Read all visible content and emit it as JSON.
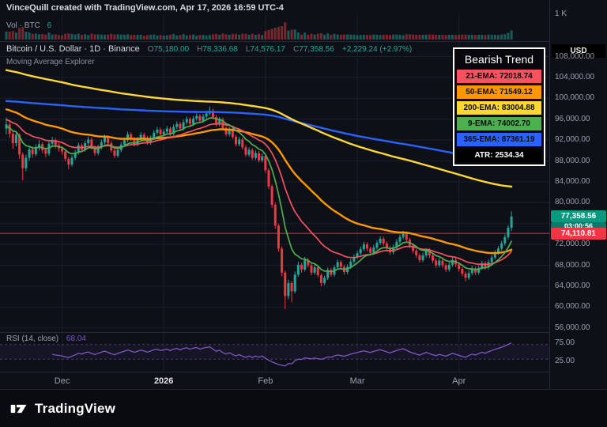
{
  "attribution": "VinceQuill created with TradingView.com, Apr 17, 2026 16:59 UTC-4",
  "volume_indicator": {
    "label": "Vol · BTC",
    "value": "6",
    "scale_label": "1 K"
  },
  "symbol_line": {
    "title": "Bitcoin / U.S. Dollar · 1D · Binance",
    "o_label": "O",
    "o": "75,180.00",
    "h_label": "H",
    "h": "78,336.68",
    "l_label": "L",
    "l": "74,576.17",
    "c_label": "C",
    "c": "77,358.56",
    "change": "+2,229.24 (+2.97%)"
  },
  "indicator_label": "Moving Average Explorer",
  "legend": {
    "title": "Bearish Trend",
    "rows": [
      {
        "label": "21-EMA: 72018.74",
        "bg": "#f7525f",
        "fg": "#0b0b0b"
      },
      {
        "label": "50-EMA: 71549.12",
        "bg": "#ff9800",
        "fg": "#0b0b0b"
      },
      {
        "label": "200-EMA: 83004.88",
        "bg": "#fdd835",
        "fg": "#0b0b0b"
      },
      {
        "label": "9-EMA: 74002.70",
        "bg": "#4caf50",
        "fg": "#0b0b0b"
      },
      {
        "label": "365-EMA: 87361.19",
        "bg": "#2962ff",
        "fg": "#0b0b0b"
      },
      {
        "label": "ATR: 2534.34",
        "bg": "#000000",
        "fg": "#ffffff"
      }
    ]
  },
  "price_scale": {
    "currency": "USD",
    "labels": [
      {
        "text": "108,000.00",
        "value": 108000
      },
      {
        "text": "104,000.00",
        "value": 104000
      },
      {
        "text": "100,000.00",
        "value": 100000
      },
      {
        "text": "96,000.00",
        "value": 96000
      },
      {
        "text": "92,000.00",
        "value": 92000
      },
      {
        "text": "88,000.00",
        "value": 88000
      },
      {
        "text": "84,000.00",
        "value": 84000
      },
      {
        "text": "80,000.00",
        "value": 80000
      },
      {
        "text": "76,000.00",
        "value": 76000
      },
      {
        "text": "72,000.00",
        "value": 72000
      },
      {
        "text": "68,000.00",
        "value": 68000
      },
      {
        "text": "64,000.00",
        "value": 64000
      },
      {
        "text": "60,000.00",
        "value": 60000
      },
      {
        "text": "56,000.00",
        "value": 56000
      }
    ],
    "current_price": {
      "text": "77,358.56",
      "value": 77358.56,
      "bg": "#089981"
    },
    "countdown": {
      "text": "03:00:56",
      "bg": "#0b7a6a"
    },
    "low_tag": {
      "text": "74,110.81",
      "value": 74110.81,
      "bg": "#f23645"
    }
  },
  "rsi": {
    "label": "RSI (14, close)",
    "value": "68.04",
    "color": "#7e57c2",
    "upper": {
      "text": "75.00",
      "value": 75
    },
    "lower": {
      "text": "25.00",
      "value": 25
    },
    "band": [
      30,
      70
    ]
  },
  "time_axis": {
    "labels": [
      {
        "text": "Dec",
        "bar": 17
      },
      {
        "text": "2026",
        "bar": 48,
        "major": true
      },
      {
        "text": "Feb",
        "bar": 79
      },
      {
        "text": "Mar",
        "bar": 107
      },
      {
        "text": "Apr",
        "bar": 138
      }
    ]
  },
  "footer": {
    "brand": "TradingView"
  },
  "chart_data": {
    "type": "candlestick",
    "symbol": "Bitcoin / U.S. Dollar",
    "interval": "1D",
    "exchange": "Binance",
    "unit": "thousand USD",
    "price_ylim": [
      55500,
      110500
    ],
    "price_gridlines": [
      108000,
      104000,
      100000,
      96000,
      92000,
      88000,
      84000,
      80000,
      76000,
      72000,
      68000,
      64000,
      60000,
      56000
    ],
    "red_line_price": 74110.81,
    "current_price": 77358.56,
    "atr": 2534.34,
    "rsi_period": 14,
    "rsi_last": 68.04,
    "up_color": "#26a69a",
    "down_color": "#f23645",
    "emas": [
      {
        "label": "9-EMA",
        "period": 9,
        "seed_k": 94.5,
        "color": "#4caf50",
        "last": 74002.7
      },
      {
        "label": "21-EMA",
        "period": 21,
        "seed_k": 96.0,
        "color": "#f7525f",
        "last": 72018.74
      },
      {
        "label": "50-EMA",
        "period": 50,
        "seed_k": 98.0,
        "color": "#ff9800",
        "last": 71549.12
      },
      {
        "label": "200-EMA",
        "period": 200,
        "seed_k": 105.5,
        "color": "#fdd835",
        "last": 83004.88
      },
      {
        "label": "365-EMA",
        "period": 365,
        "seed_k": 99.5,
        "color": "#2962ff",
        "last": 87361.19
      }
    ],
    "candles_ohlc_k": [
      [
        94.2,
        96.3,
        93.1,
        95.0
      ],
      [
        95.0,
        95.6,
        92.4,
        93.2
      ],
      [
        93.2,
        93.8,
        90.3,
        91.4
      ],
      [
        91.4,
        93.6,
        90.8,
        93.0
      ],
      [
        93.0,
        93.3,
        88.4,
        89.2
      ],
      [
        89.2,
        89.6,
        84.3,
        86.6
      ],
      [
        86.6,
        89.2,
        86.0,
        88.6
      ],
      [
        88.6,
        90.9,
        88.0,
        90.2
      ],
      [
        90.2,
        90.8,
        88.6,
        89.3
      ],
      [
        89.3,
        91.2,
        88.9,
        90.6
      ],
      [
        90.6,
        92.0,
        90.0,
        91.2
      ],
      [
        91.2,
        91.6,
        89.5,
        90.1
      ],
      [
        90.1,
        90.6,
        88.7,
        89.4
      ],
      [
        89.4,
        91.8,
        89.0,
        91.3
      ],
      [
        91.3,
        92.6,
        90.7,
        92.0
      ],
      [
        92.0,
        92.4,
        90.4,
        91.0
      ],
      [
        91.0,
        91.5,
        89.8,
        90.4
      ],
      [
        90.4,
        90.8,
        89.2,
        89.8
      ],
      [
        89.8,
        90.2,
        87.9,
        88.4
      ],
      [
        88.4,
        88.8,
        86.4,
        87.3
      ],
      [
        87.3,
        89.1,
        86.9,
        88.6
      ],
      [
        88.6,
        90.1,
        88.2,
        89.6
      ],
      [
        89.6,
        91.5,
        89.2,
        91.0
      ],
      [
        91.0,
        91.4,
        89.6,
        90.1
      ],
      [
        90.1,
        91.9,
        89.8,
        91.4
      ],
      [
        91.4,
        92.7,
        91.0,
        92.1
      ],
      [
        92.1,
        92.5,
        90.2,
        90.6
      ],
      [
        90.6,
        91.0,
        89.0,
        89.5
      ],
      [
        89.5,
        91.1,
        89.1,
        90.6
      ],
      [
        90.6,
        92.1,
        90.2,
        91.6
      ],
      [
        91.6,
        93.0,
        91.2,
        92.5
      ],
      [
        92.5,
        92.9,
        91.0,
        91.4
      ],
      [
        91.4,
        91.8,
        89.6,
        90.0
      ],
      [
        90.0,
        90.4,
        88.5,
        89.0
      ],
      [
        89.0,
        90.6,
        88.6,
        90.1
      ],
      [
        90.1,
        91.6,
        89.7,
        91.1
      ],
      [
        91.1,
        92.5,
        90.7,
        92.0
      ],
      [
        92.0,
        93.6,
        91.6,
        93.1
      ],
      [
        93.1,
        93.5,
        91.8,
        92.2
      ],
      [
        92.2,
        92.6,
        90.8,
        91.2
      ],
      [
        91.2,
        92.6,
        90.8,
        92.1
      ],
      [
        92.1,
        93.5,
        91.7,
        93.0
      ],
      [
        93.0,
        93.4,
        92.0,
        92.4
      ],
      [
        92.4,
        92.8,
        91.1,
        91.5
      ],
      [
        91.5,
        92.9,
        91.1,
        92.4
      ],
      [
        92.4,
        93.9,
        92.0,
        93.4
      ],
      [
        93.4,
        94.5,
        93.0,
        94.0
      ],
      [
        94.0,
        94.4,
        92.7,
        93.1
      ],
      [
        93.1,
        94.1,
        92.7,
        93.6
      ],
      [
        93.6,
        94.7,
        93.2,
        94.2
      ],
      [
        94.2,
        94.6,
        92.8,
        93.2
      ],
      [
        93.2,
        95.0,
        92.8,
        94.5
      ],
      [
        94.5,
        95.6,
        94.1,
        95.1
      ],
      [
        95.1,
        95.5,
        93.8,
        94.2
      ],
      [
        94.2,
        95.9,
        93.8,
        95.4
      ],
      [
        95.4,
        96.5,
        95.0,
        96.0
      ],
      [
        96.0,
        96.4,
        94.7,
        95.1
      ],
      [
        95.1,
        96.6,
        94.7,
        96.1
      ],
      [
        96.1,
        97.1,
        95.7,
        96.6
      ],
      [
        96.6,
        97.0,
        95.3,
        95.7
      ],
      [
        95.7,
        97.0,
        95.3,
        96.5
      ],
      [
        96.5,
        97.6,
        96.1,
        97.1
      ],
      [
        97.1,
        98.4,
        96.7,
        97.6
      ],
      [
        97.6,
        98.0,
        96.0,
        96.4
      ],
      [
        96.4,
        96.8,
        94.6,
        95.0
      ],
      [
        95.0,
        96.4,
        94.6,
        95.9
      ],
      [
        95.9,
        96.3,
        93.9,
        94.3
      ],
      [
        94.3,
        94.7,
        92.7,
        93.1
      ],
      [
        93.1,
        94.5,
        92.7,
        94.0
      ],
      [
        94.0,
        94.4,
        92.2,
        92.6
      ],
      [
        92.6,
        93.0,
        90.8,
        91.2
      ],
      [
        91.2,
        92.6,
        90.8,
        92.1
      ],
      [
        92.1,
        92.5,
        90.2,
        90.6
      ],
      [
        90.6,
        91.0,
        88.8,
        89.2
      ],
      [
        89.2,
        90.6,
        88.8,
        90.1
      ],
      [
        90.1,
        90.5,
        88.2,
        88.6
      ],
      [
        88.6,
        90.0,
        88.2,
        89.5
      ],
      [
        89.5,
        89.9,
        87.7,
        88.1
      ],
      [
        88.1,
        89.4,
        87.7,
        88.9
      ],
      [
        88.9,
        89.2,
        85.7,
        86.2
      ],
      [
        86.2,
        86.6,
        82.6,
        83.1
      ],
      [
        83.1,
        83.5,
        79.0,
        79.6
      ],
      [
        79.6,
        80.0,
        75.0,
        75.6
      ],
      [
        75.6,
        76.0,
        70.6,
        71.2
      ],
      [
        71.2,
        71.6,
        65.9,
        66.6
      ],
      [
        66.6,
        67.0,
        59.6,
        62.1
      ],
      [
        62.1,
        65.2,
        61.5,
        64.6
      ],
      [
        64.6,
        65.0,
        60.9,
        63.0
      ],
      [
        63.0,
        66.8,
        62.6,
        66.2
      ],
      [
        66.2,
        68.7,
        65.8,
        68.1
      ],
      [
        68.1,
        68.5,
        66.6,
        67.2
      ],
      [
        67.2,
        69.6,
        66.8,
        69.0
      ],
      [
        69.0,
        69.4,
        67.6,
        68.0
      ],
      [
        68.0,
        68.4,
        66.1,
        66.6
      ],
      [
        66.6,
        68.1,
        66.2,
        67.6
      ],
      [
        67.6,
        68.0,
        65.7,
        66.1
      ],
      [
        66.1,
        66.5,
        64.0,
        64.6
      ],
      [
        64.6,
        66.0,
        64.2,
        65.6
      ],
      [
        65.6,
        67.6,
        65.2,
        67.1
      ],
      [
        67.1,
        67.5,
        65.8,
        66.2
      ],
      [
        66.2,
        68.0,
        65.8,
        67.6
      ],
      [
        67.6,
        69.1,
        67.2,
        68.6
      ],
      [
        68.6,
        69.0,
        67.2,
        67.7
      ],
      [
        67.7,
        68.1,
        66.2,
        66.7
      ],
      [
        66.7,
        68.2,
        66.3,
        67.7
      ],
      [
        67.7,
        69.2,
        67.3,
        68.7
      ],
      [
        68.7,
        70.1,
        68.3,
        69.6
      ],
      [
        69.6,
        70.8,
        69.2,
        70.3
      ],
      [
        70.3,
        71.6,
        69.9,
        71.1
      ],
      [
        71.1,
        72.5,
        70.7,
        72.0
      ],
      [
        72.0,
        72.4,
        70.7,
        71.2
      ],
      [
        71.2,
        71.6,
        69.9,
        70.4
      ],
      [
        70.4,
        71.9,
        70.0,
        71.4
      ],
      [
        71.4,
        72.8,
        71.0,
        72.3
      ],
      [
        72.3,
        73.6,
        71.9,
        73.1
      ],
      [
        73.1,
        73.5,
        71.7,
        72.2
      ],
      [
        72.2,
        72.6,
        70.8,
        71.3
      ],
      [
        71.3,
        71.7,
        70.0,
        70.5
      ],
      [
        70.5,
        72.0,
        70.1,
        71.5
      ],
      [
        71.5,
        73.0,
        71.1,
        72.5
      ],
      [
        72.5,
        73.9,
        72.1,
        73.4
      ],
      [
        73.4,
        74.6,
        73.0,
        74.1
      ],
      [
        74.1,
        74.5,
        72.4,
        72.9
      ],
      [
        72.9,
        73.3,
        71.3,
        71.8
      ],
      [
        71.8,
        72.2,
        70.3,
        70.8
      ],
      [
        70.8,
        71.2,
        69.4,
        69.9
      ],
      [
        69.9,
        70.3,
        68.5,
        69.0
      ],
      [
        69.0,
        70.4,
        68.6,
        69.9
      ],
      [
        69.9,
        71.3,
        69.5,
        70.9
      ],
      [
        70.9,
        71.3,
        69.4,
        69.9
      ],
      [
        69.9,
        70.3,
        68.4,
        68.9
      ],
      [
        68.9,
        69.3,
        67.5,
        68.0
      ],
      [
        68.0,
        69.4,
        67.6,
        68.9
      ],
      [
        68.9,
        69.3,
        67.5,
        68.0
      ],
      [
        68.0,
        68.4,
        66.7,
        67.2
      ],
      [
        67.2,
        68.6,
        66.8,
        68.1
      ],
      [
        68.1,
        69.5,
        67.7,
        69.0
      ],
      [
        69.0,
        69.4,
        67.7,
        68.2
      ],
      [
        68.2,
        68.6,
        66.8,
        67.3
      ],
      [
        67.3,
        67.7,
        65.9,
        66.4
      ],
      [
        66.4,
        66.8,
        64.9,
        65.6
      ],
      [
        65.6,
        67.0,
        65.2,
        66.5
      ],
      [
        66.5,
        67.9,
        66.1,
        67.4
      ],
      [
        67.4,
        67.8,
        66.1,
        66.6
      ],
      [
        66.6,
        68.0,
        66.2,
        67.5
      ],
      [
        67.5,
        68.9,
        67.1,
        68.4
      ],
      [
        68.4,
        68.8,
        67.1,
        67.6
      ],
      [
        67.6,
        69.1,
        67.2,
        68.6
      ],
      [
        68.6,
        70.0,
        68.2,
        69.5
      ],
      [
        69.5,
        70.9,
        69.1,
        70.4
      ],
      [
        70.4,
        71.7,
        70.0,
        71.2
      ],
      [
        71.2,
        72.7,
        70.8,
        72.2
      ],
      [
        72.2,
        73.9,
        71.8,
        73.4
      ],
      [
        73.4,
        75.7,
        73.0,
        75.2
      ],
      [
        75.18,
        78.34,
        74.58,
        77.36
      ]
    ]
  }
}
